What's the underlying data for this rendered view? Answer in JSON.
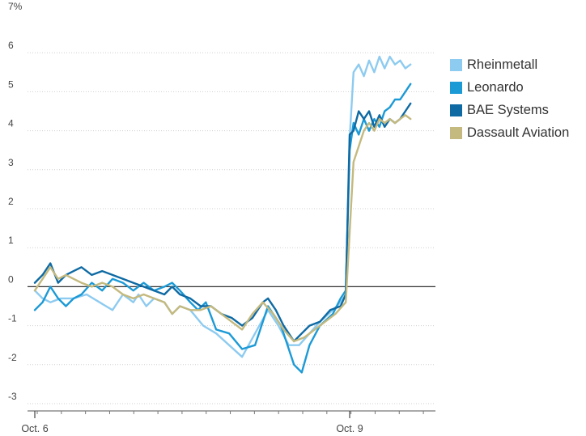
{
  "chart_data": {
    "type": "line",
    "title": "",
    "xlabel": "",
    "ylabel": "",
    "y_unit_label": "7%",
    "ylim": [
      -3,
      7
    ],
    "yticks": [
      -3,
      -2,
      -1,
      0,
      1,
      2,
      3,
      4,
      5,
      6,
      7
    ],
    "ytick_labels": [
      "-3",
      "-2",
      "-1",
      "0",
      "1",
      "2",
      "3",
      "4",
      "5",
      "6",
      "7%"
    ],
    "x_day_labels": [
      "Oct. 6",
      "Oct. 9"
    ],
    "grid": "horizontal-dotted",
    "legend_position": "right",
    "series": [
      {
        "name": "Rheinmetall",
        "color": "#8ecbf0",
        "points": [
          [
            0.0,
            -0.1
          ],
          [
            0.3,
            -0.3
          ],
          [
            0.6,
            -0.4
          ],
          [
            1.0,
            -0.3
          ],
          [
            1.5,
            -0.3
          ],
          [
            2.0,
            -0.2
          ],
          [
            2.5,
            -0.4
          ],
          [
            3.0,
            -0.6
          ],
          [
            3.4,
            -0.2
          ],
          [
            3.8,
            -0.4
          ],
          [
            4.0,
            -0.2
          ],
          [
            4.3,
            -0.5
          ],
          [
            4.6,
            -0.3
          ],
          [
            5.0,
            -0.4
          ],
          [
            5.3,
            -0.7
          ],
          [
            5.6,
            -0.5
          ],
          [
            6.0,
            -0.6
          ],
          [
            6.5,
            -1.0
          ],
          [
            7.0,
            -1.2
          ],
          [
            7.5,
            -1.5
          ],
          [
            8.0,
            -1.8
          ],
          [
            8.5,
            -1.2
          ],
          [
            9.0,
            -0.6
          ],
          [
            9.4,
            -1.0
          ],
          [
            9.8,
            -1.5
          ],
          [
            10.2,
            -1.5
          ],
          [
            10.6,
            -1.2
          ],
          [
            11.0,
            -0.9
          ],
          [
            11.5,
            -0.6
          ],
          [
            11.8,
            -0.4
          ],
          [
            12.0,
            -0.2
          ],
          [
            12.15,
            3.8
          ],
          [
            12.3,
            5.5
          ],
          [
            12.5,
            5.7
          ],
          [
            12.7,
            5.4
          ],
          [
            12.9,
            5.8
          ],
          [
            13.1,
            5.5
          ],
          [
            13.3,
            5.9
          ],
          [
            13.5,
            5.6
          ],
          [
            13.7,
            5.9
          ],
          [
            13.9,
            5.7
          ],
          [
            14.1,
            5.8
          ],
          [
            14.3,
            5.6
          ],
          [
            14.5,
            5.7
          ]
        ]
      },
      {
        "name": "Leonardo",
        "color": "#1c9ad6",
        "points": [
          [
            0.0,
            -0.6
          ],
          [
            0.3,
            -0.4
          ],
          [
            0.6,
            0.0
          ],
          [
            0.9,
            -0.3
          ],
          [
            1.2,
            -0.5
          ],
          [
            1.5,
            -0.3
          ],
          [
            1.8,
            -0.2
          ],
          [
            2.2,
            0.1
          ],
          [
            2.6,
            -0.1
          ],
          [
            3.0,
            0.2
          ],
          [
            3.4,
            0.1
          ],
          [
            3.8,
            -0.1
          ],
          [
            4.2,
            0.1
          ],
          [
            4.6,
            -0.1
          ],
          [
            5.0,
            0.0
          ],
          [
            5.3,
            0.1
          ],
          [
            5.6,
            -0.1
          ],
          [
            6.0,
            -0.4
          ],
          [
            6.3,
            -0.6
          ],
          [
            6.6,
            -0.4
          ],
          [
            7.0,
            -1.1
          ],
          [
            7.5,
            -1.2
          ],
          [
            8.0,
            -1.6
          ],
          [
            8.5,
            -1.5
          ],
          [
            9.0,
            -0.5
          ],
          [
            9.5,
            -1.0
          ],
          [
            10.0,
            -2.0
          ],
          [
            10.3,
            -2.2
          ],
          [
            10.6,
            -1.5
          ],
          [
            11.0,
            -1.0
          ],
          [
            11.5,
            -0.7
          ],
          [
            11.8,
            -0.3
          ],
          [
            12.0,
            -0.1
          ],
          [
            12.15,
            3.5
          ],
          [
            12.3,
            4.2
          ],
          [
            12.5,
            3.9
          ],
          [
            12.7,
            4.3
          ],
          [
            12.9,
            4.0
          ],
          [
            13.1,
            4.3
          ],
          [
            13.3,
            4.1
          ],
          [
            13.5,
            4.5
          ],
          [
            13.7,
            4.6
          ],
          [
            13.9,
            4.8
          ],
          [
            14.1,
            4.8
          ],
          [
            14.3,
            5.0
          ],
          [
            14.5,
            5.2
          ]
        ]
      },
      {
        "name": "BAE Systems",
        "color": "#0f6aa3",
        "points": [
          [
            0.0,
            0.1
          ],
          [
            0.3,
            0.3
          ],
          [
            0.6,
            0.6
          ],
          [
            0.9,
            0.1
          ],
          [
            1.2,
            0.3
          ],
          [
            1.5,
            0.4
          ],
          [
            1.8,
            0.5
          ],
          [
            2.2,
            0.3
          ],
          [
            2.6,
            0.4
          ],
          [
            3.0,
            0.3
          ],
          [
            3.4,
            0.2
          ],
          [
            3.8,
            0.1
          ],
          [
            4.2,
            0.0
          ],
          [
            4.6,
            -0.1
          ],
          [
            5.0,
            -0.2
          ],
          [
            5.3,
            0.0
          ],
          [
            5.6,
            -0.2
          ],
          [
            6.0,
            -0.3
          ],
          [
            6.4,
            -0.5
          ],
          [
            6.8,
            -0.5
          ],
          [
            7.2,
            -0.7
          ],
          [
            7.6,
            -0.8
          ],
          [
            8.0,
            -1.0
          ],
          [
            8.4,
            -0.8
          ],
          [
            8.8,
            -0.4
          ],
          [
            9.0,
            -0.3
          ],
          [
            9.3,
            -0.6
          ],
          [
            9.6,
            -1.0
          ],
          [
            10.0,
            -1.4
          ],
          [
            10.3,
            -1.2
          ],
          [
            10.6,
            -1.0
          ],
          [
            11.0,
            -0.9
          ],
          [
            11.4,
            -0.6
          ],
          [
            11.8,
            -0.5
          ],
          [
            12.0,
            -0.2
          ],
          [
            12.15,
            3.9
          ],
          [
            12.3,
            4.0
          ],
          [
            12.5,
            4.5
          ],
          [
            12.7,
            4.3
          ],
          [
            12.9,
            4.5
          ],
          [
            13.1,
            4.1
          ],
          [
            13.3,
            4.4
          ],
          [
            13.5,
            4.1
          ],
          [
            13.7,
            4.3
          ],
          [
            13.9,
            4.2
          ],
          [
            14.1,
            4.3
          ],
          [
            14.3,
            4.5
          ],
          [
            14.5,
            4.7
          ]
        ]
      },
      {
        "name": "Dassault Aviation",
        "color": "#c4b97e",
        "points": [
          [
            0.0,
            -0.1
          ],
          [
            0.3,
            0.2
          ],
          [
            0.6,
            0.5
          ],
          [
            0.9,
            0.2
          ],
          [
            1.2,
            0.3
          ],
          [
            1.5,
            0.2
          ],
          [
            1.8,
            0.1
          ],
          [
            2.2,
            0.0
          ],
          [
            2.6,
            0.1
          ],
          [
            3.0,
            0.0
          ],
          [
            3.4,
            -0.2
          ],
          [
            3.8,
            -0.3
          ],
          [
            4.2,
            -0.2
          ],
          [
            4.6,
            -0.3
          ],
          [
            5.0,
            -0.4
          ],
          [
            5.3,
            -0.7
          ],
          [
            5.6,
            -0.5
          ],
          [
            6.0,
            -0.6
          ],
          [
            6.4,
            -0.6
          ],
          [
            6.8,
            -0.5
          ],
          [
            7.2,
            -0.7
          ],
          [
            7.6,
            -0.9
          ],
          [
            8.0,
            -1.1
          ],
          [
            8.4,
            -0.7
          ],
          [
            8.8,
            -0.4
          ],
          [
            9.2,
            -0.7
          ],
          [
            9.6,
            -1.1
          ],
          [
            10.0,
            -1.4
          ],
          [
            10.4,
            -1.3
          ],
          [
            10.8,
            -1.1
          ],
          [
            11.2,
            -0.9
          ],
          [
            11.6,
            -0.7
          ],
          [
            12.0,
            -0.4
          ],
          [
            12.3,
            3.2
          ],
          [
            12.5,
            3.6
          ],
          [
            12.7,
            4.0
          ],
          [
            12.9,
            4.2
          ],
          [
            13.1,
            4.0
          ],
          [
            13.3,
            4.3
          ],
          [
            13.5,
            4.2
          ],
          [
            13.7,
            4.3
          ],
          [
            13.9,
            4.2
          ],
          [
            14.1,
            4.3
          ],
          [
            14.3,
            4.4
          ],
          [
            14.5,
            4.3
          ]
        ]
      }
    ]
  }
}
